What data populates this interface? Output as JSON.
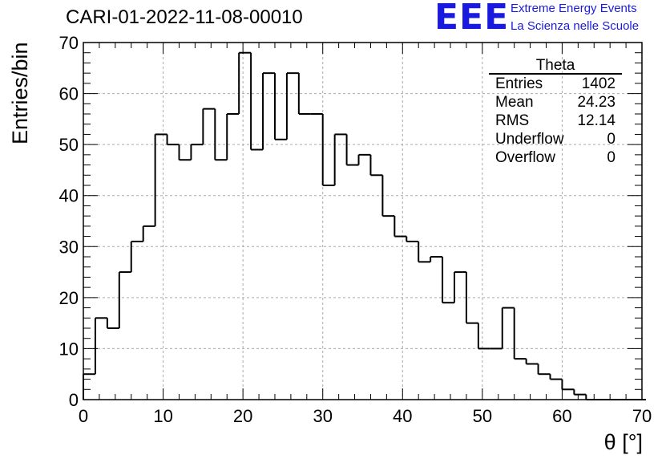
{
  "chart_data": {
    "type": "bar",
    "title": "CARI-01-2022-11-08-00010",
    "xlabel": "θ [°]",
    "ylabel": "Entries/bin",
    "xlim": [
      0,
      70
    ],
    "ylim": [
      0,
      70
    ],
    "bin_width": 1.5,
    "x_ticks": [
      "0",
      "10",
      "20",
      "30",
      "40",
      "50",
      "60",
      "70"
    ],
    "y_ticks": [
      "0",
      "10",
      "20",
      "30",
      "40",
      "50",
      "60",
      "70"
    ],
    "grid": true,
    "histogram": "step",
    "values": [
      5,
      16,
      14,
      25,
      31,
      34,
      52,
      50,
      47,
      50,
      57,
      47,
      56,
      68,
      49,
      64,
      51,
      64,
      56,
      56,
      42,
      52,
      46,
      48,
      44,
      36,
      32,
      31,
      27,
      28,
      19,
      25,
      15,
      10,
      10,
      18,
      8,
      7,
      5,
      4,
      2,
      1,
      0,
      0,
      0,
      0,
      0
    ]
  },
  "stats_box": {
    "title": "Theta",
    "rows": [
      {
        "label": "Entries",
        "value": "1402"
      },
      {
        "label": "Mean",
        "value": "24.23"
      },
      {
        "label": "RMS",
        "value": "12.14"
      },
      {
        "label": "Underflow",
        "value": "0"
      },
      {
        "label": "Overflow",
        "value": "0"
      }
    ]
  },
  "logo": {
    "mark": "EEE",
    "line1": "Extreme Energy Events",
    "line2": "La Scienza nelle Scuole"
  },
  "colors": {
    "logo": "#1a1adf",
    "line": "#000000",
    "grid": "#aaaaaa"
  }
}
